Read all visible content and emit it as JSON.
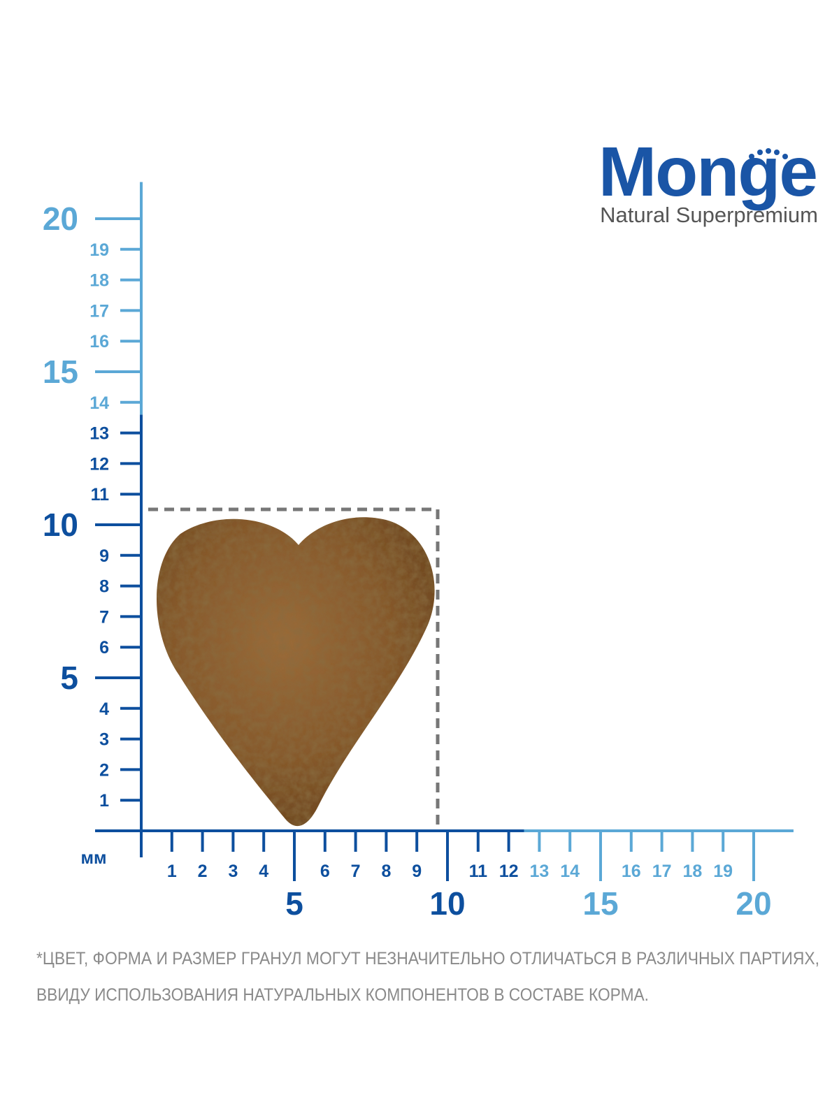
{
  "brand": {
    "name": "Monge",
    "tagline": "Natural Superpremium"
  },
  "ruler": {
    "unit": "мм",
    "x_ticks": [
      1,
      2,
      3,
      4,
      5,
      6,
      7,
      8,
      9,
      10,
      11,
      12,
      13,
      14,
      15,
      16,
      17,
      18,
      19,
      20
    ],
    "y_ticks": [
      1,
      2,
      3,
      4,
      5,
      6,
      7,
      8,
      9,
      10,
      11,
      12,
      13,
      14,
      15,
      16,
      17,
      18,
      19,
      20
    ]
  },
  "footnote": {
    "lines": [
      "*ЦВЕТ, ФОРМА И РАЗМЕР ГРАНУЛ МОГУТ НЕЗНАЧИТЕЛЬНО ОТЛИЧАТЬСЯ В РАЗЛИЧНЫХ ПАРТИЯХ,",
      "ВВИДУ ИСПОЛЬЗОВАНИЯ НАТУРАЛЬНЫХ КОМПОНЕНТОВ В СОСТАВЕ КОРМА."
    ]
  }
}
